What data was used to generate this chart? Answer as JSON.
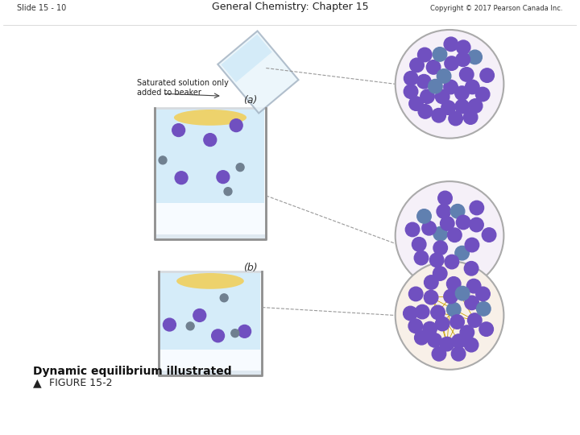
{
  "bg_color": "#ffffff",
  "figure_title": "FIGURE 15-2",
  "figure_subtitle": "Dynamic equilibrium illustrated",
  "slide_label": "Slide 15 - 10",
  "center_label": "General Chemistry: Chapter 15",
  "copyright_label": "Copyright © 2017 Pearson Canada Inc.",
  "label_a": "(a)",
  "label_b": "(b)",
  "beaker_label": "Saturated solution only\nadded to beaker",
  "triangle_char": "▲",
  "beaker_color": "#d0eaf8",
  "solid_color": "#f0d060",
  "ion_color_large": "#7050c0",
  "ion_color_small": "#708090",
  "line_color": "#888888",
  "circle_border": "#aaaaaa"
}
